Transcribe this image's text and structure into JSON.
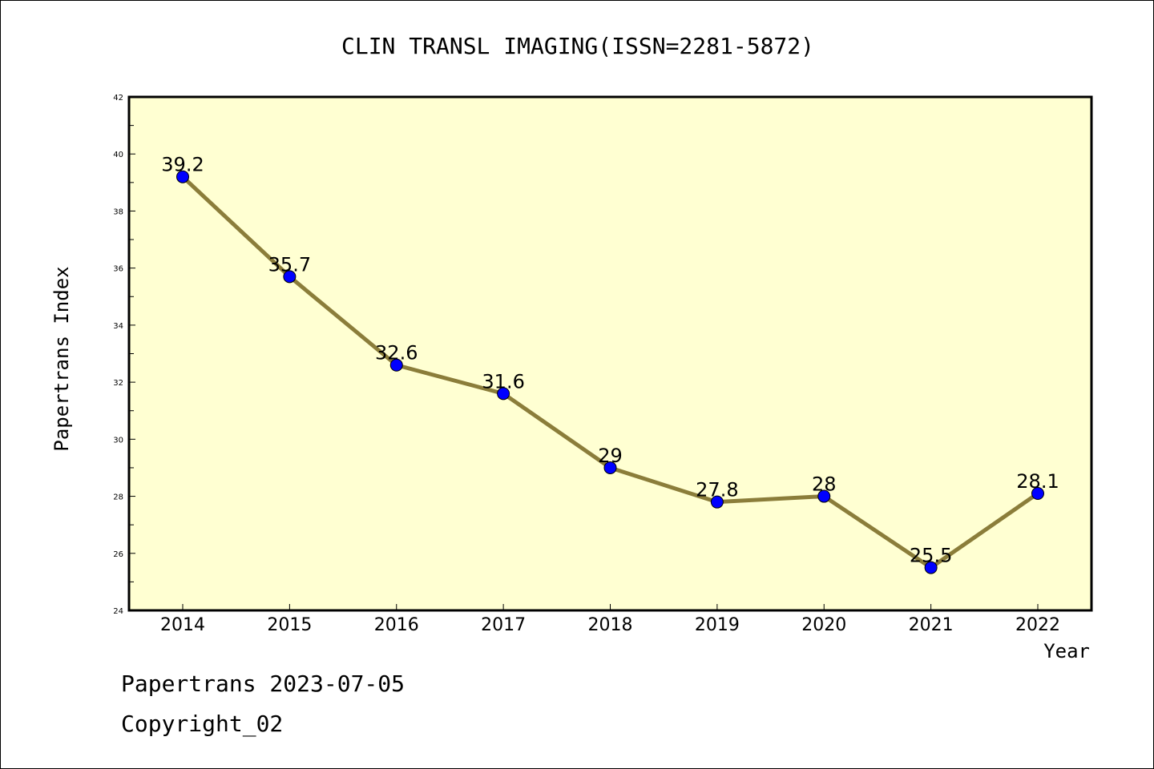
{
  "chart_data": {
    "type": "line",
    "title": "CLIN TRANSL IMAGING(ISSN=2281-5872)",
    "xlabel": "Year",
    "ylabel": "Papertrans Index",
    "categories": [
      "2014",
      "2015",
      "2016",
      "2017",
      "2018",
      "2019",
      "2020",
      "2021",
      "2022"
    ],
    "values": [
      39.2,
      35.7,
      32.6,
      31.6,
      29,
      27.8,
      28,
      25.5,
      28.1
    ],
    "data_labels": [
      "39.2",
      "35.7",
      "32.6",
      "31.6",
      "29",
      "27.8",
      "28",
      "25.5",
      "28.1"
    ],
    "ylim": [
      24,
      42
    ],
    "yticks": [
      24,
      26,
      28,
      30,
      32,
      34,
      36,
      38,
      40,
      42
    ],
    "grid": false,
    "colors": {
      "plot_background": "#ffffd2",
      "line": "#8b7d3a",
      "marker": "#0000ff"
    }
  },
  "footer": {
    "date_text": "Papertrans 2023-07-05",
    "copyright_text": "Copyright_02"
  }
}
